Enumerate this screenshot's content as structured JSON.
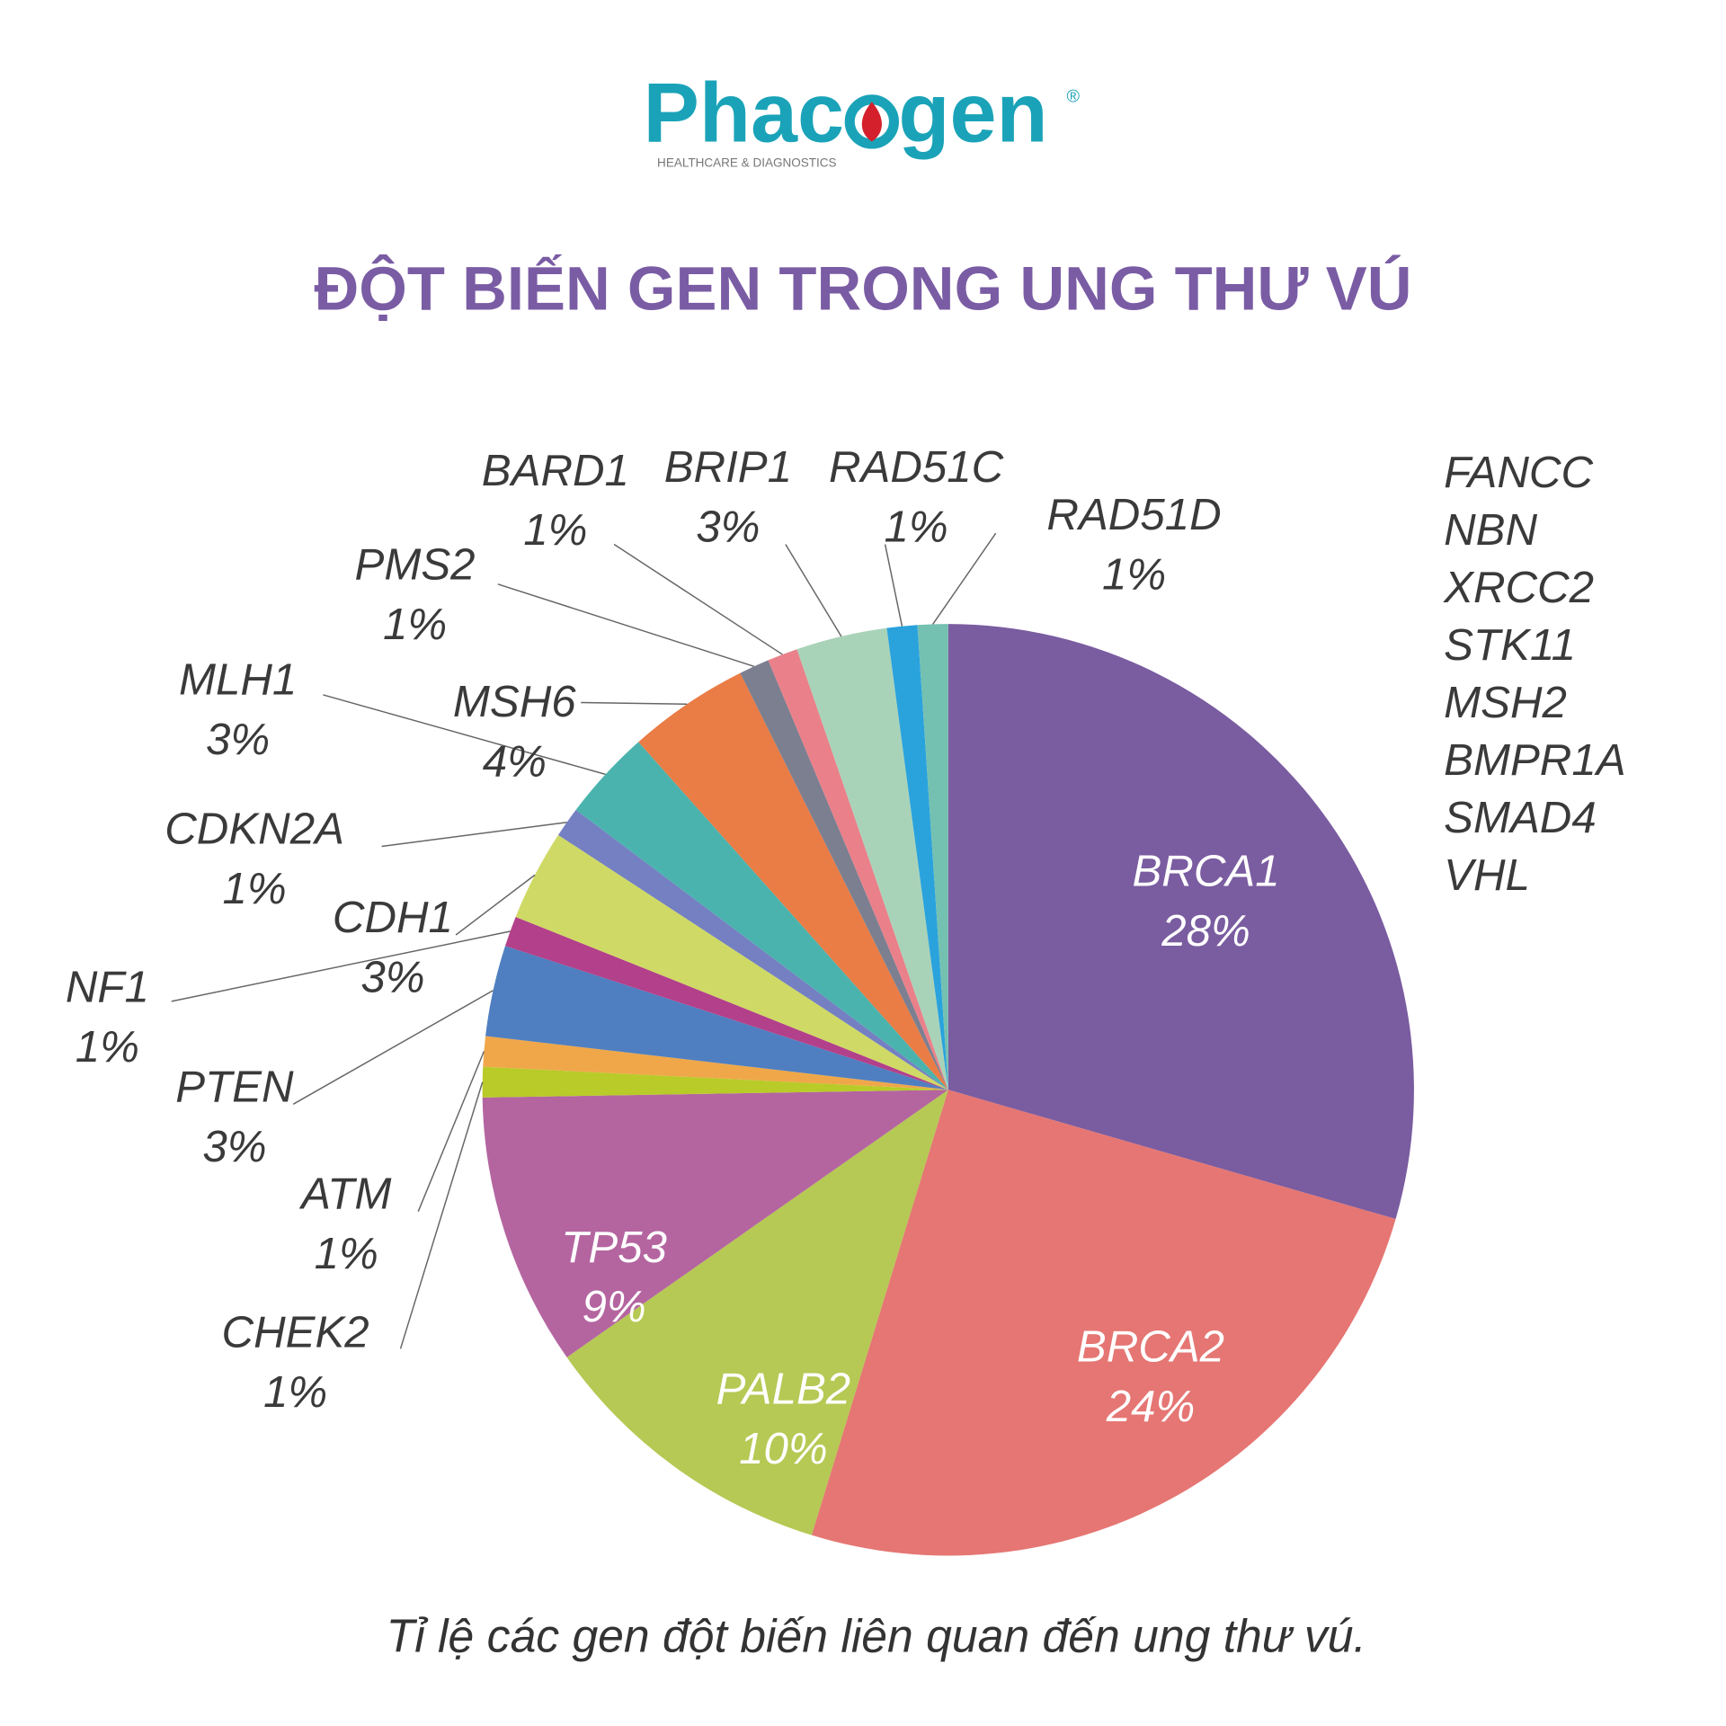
{
  "logo": {
    "parts": [
      "Phac",
      "gen"
    ],
    "registered": "®",
    "tagline": "HEALTHCARE & DIAGNOSTICS"
  },
  "chart_data": {
    "type": "pie",
    "title": "ĐỘT BIẾN GEN TRONG UNG THƯ VÚ",
    "caption": "Tỉ lệ các gen đột biến liên quan đến ung thư vú.",
    "categories": [
      "BRCA1",
      "BRCA2",
      "PALB2",
      "TP53",
      "CHEK2",
      "ATM",
      "PTEN",
      "NF1",
      "CDH1",
      "CDKN2A",
      "MLH1",
      "MSH6",
      "PMS2",
      "BARD1",
      "BRIP1",
      "RAD51C",
      "RAD51D"
    ],
    "values": [
      28,
      24,
      10,
      9,
      1,
      1,
      3,
      1,
      3,
      1,
      3,
      4,
      1,
      1,
      3,
      1,
      1
    ],
    "value_labels": [
      "28%",
      "24%",
      "10%",
      "9%",
      "1%",
      "1%",
      "3%",
      "1%",
      "3%",
      "1%",
      "3%",
      "4%",
      "1%",
      "1%",
      "3%",
      "1%",
      "1%"
    ],
    "colors": [
      "#7a5ca0",
      "#e57673",
      "#b5c954",
      "#b465a0",
      "#b8cb28",
      "#efa74a",
      "#4f7fc0",
      "#b3408a",
      "#cfd965",
      "#7480c2",
      "#4bb3ad",
      "#ea7c45",
      "#7b7f90",
      "#e9808a",
      "#a9d3b8",
      "#2aa3dd",
      "#74c0b1"
    ],
    "other_genes": [
      "FANCC",
      "NBN",
      "XRCC2",
      "STK11",
      "MSH2",
      "BMPR1A",
      "SMAD4",
      "VHL"
    ]
  }
}
